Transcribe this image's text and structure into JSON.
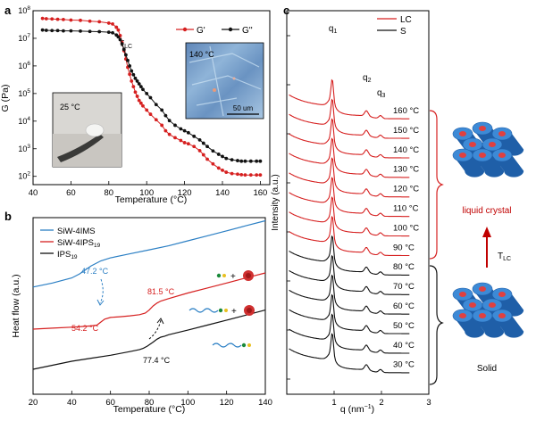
{
  "panels": {
    "a": {
      "letter": "a",
      "chart_data": {
        "type": "line",
        "xlabel": "Temperature (°C)",
        "ylabel": "G (Pa)",
        "xlim": [
          40,
          165
        ],
        "ylim_log10": [
          1.7,
          8
        ],
        "log_y": true,
        "x_ticks": [
          40,
          60,
          80,
          100,
          120,
          140,
          160
        ],
        "y_ticks": [
          {
            "e": "2",
            "v": 2
          },
          {
            "e": "3",
            "v": 3
          },
          {
            "e": "4",
            "v": 4
          },
          {
            "e": "5",
            "v": 5
          },
          {
            "e": "6",
            "v": 6
          },
          {
            "e": "7",
            "v": 7
          },
          {
            "e": "8",
            "v": 8
          }
        ],
        "tick_base": "10",
        "legend": [
          "G'",
          "G''"
        ],
        "legend_position": "top-right",
        "series": [
          {
            "name": "G'",
            "color": "#d62020",
            "x": [
              45,
              47,
              50,
              53,
              56,
              60,
              65,
              70,
              75,
              80,
              82,
              84,
              85,
              86,
              87,
              88,
              89,
              90,
              91,
              92,
              93,
              94,
              95,
              96,
              97,
              98,
              100,
              102,
              105,
              108,
              110,
              112,
              115,
              118,
              120,
              122,
              125,
              128,
              130,
              132,
              135,
              138,
              140,
              142,
              145,
              148,
              150,
              152,
              155,
              158,
              160
            ],
            "log10_y": [
              7.72,
              7.71,
              7.7,
              7.69,
              7.68,
              7.66,
              7.65,
              7.62,
              7.6,
              7.55,
              7.52,
              7.4,
              7.3,
              7.1,
              6.85,
              6.55,
              6.25,
              5.95,
              5.7,
              5.45,
              5.25,
              5.05,
              4.9,
              4.75,
              4.65,
              4.55,
              4.4,
              4.25,
              4.05,
              3.85,
              3.65,
              3.52,
              3.4,
              3.3,
              3.22,
              3.18,
              3.08,
              2.93,
              2.78,
              2.62,
              2.45,
              2.3,
              2.22,
              2.15,
              2.1,
              2.08,
              2.06,
              2.05,
              2.05,
              2.05,
              2.05
            ]
          },
          {
            "name": "G''",
            "color": "#111111",
            "x": [
              45,
              47,
              50,
              53,
              56,
              60,
              65,
              70,
              75,
              80,
              82,
              84,
              85,
              86,
              87,
              88,
              89,
              90,
              91,
              92,
              93,
              94,
              95,
              96,
              97,
              98,
              100,
              102,
              105,
              108,
              110,
              112,
              115,
              118,
              120,
              122,
              125,
              128,
              130,
              132,
              135,
              138,
              140,
              142,
              145,
              148,
              150,
              152,
              155,
              158,
              160
            ],
            "log10_y": [
              7.3,
              7.29,
              7.28,
              7.28,
              7.27,
              7.27,
              7.26,
              7.25,
              7.24,
              7.22,
              7.2,
              7.12,
              7.05,
              6.95,
              6.8,
              6.6,
              6.4,
              6.2,
              6.0,
              5.82,
              5.68,
              5.55,
              5.45,
              5.35,
              5.25,
              5.15,
              5.0,
              4.85,
              4.6,
              4.4,
              4.2,
              4.02,
              3.85,
              3.72,
              3.65,
              3.58,
              3.45,
              3.32,
              3.2,
              3.08,
              2.92,
              2.8,
              2.72,
              2.65,
              2.6,
              2.57,
              2.55,
              2.55,
              2.55,
              2.55,
              2.55
            ]
          }
        ],
        "annotations": {
          "t_lc": "T",
          "t_lc_sub": "LC"
        }
      },
      "inset_photo_label": "25 °C",
      "inset_micro_label": "140 °C",
      "scale_bar_label": "50 um"
    },
    "b": {
      "letter": "b",
      "chart_data": {
        "type": "line",
        "xlabel": "Temperature (°C)",
        "ylabel": "Heat flow (a.u.)",
        "xlim": [
          20,
          140
        ],
        "x_ticks": [
          20,
          40,
          60,
          80,
          100,
          120,
          140
        ],
        "legend": [
          {
            "main": "SiW-4IMS",
            "sub": "",
            "color": "#2b7fc4"
          },
          {
            "main": "SiW-4IPS",
            "sub": "19",
            "color": "#d62020"
          },
          {
            "main": "IPS",
            "sub": "19",
            "color": "#111111"
          }
        ],
        "legend_position": "top-left",
        "series": [
          {
            "name": "SiW-4IMS",
            "color": "#2b7fc4",
            "x": [
              20,
              30,
              40,
              44,
              47,
              50,
              55,
              60,
              70,
              80,
              90,
              100,
              110,
              120,
              130,
              140
            ],
            "y": [
              4.1,
              4.3,
              4.55,
              4.75,
              4.95,
              5.15,
              5.4,
              5.55,
              5.75,
              5.95,
              6.15,
              6.4,
              6.65,
              6.9,
              7.15,
              7.4
            ]
          },
          {
            "name": "SiW-4IPS19",
            "color": "#d62020",
            "x": [
              20,
              30,
              40,
              45,
              50,
              53,
              55,
              57,
              60,
              65,
              70,
              75,
              78,
              80,
              82,
              84,
              86,
              90,
              100,
              110,
              120,
              130,
              140
            ],
            "y": [
              2.0,
              2.05,
              2.1,
              2.13,
              2.16,
              2.2,
              2.35,
              2.5,
              2.58,
              2.62,
              2.66,
              2.72,
              2.8,
              2.95,
              3.15,
              3.3,
              3.4,
              3.52,
              3.8,
              4.05,
              4.3,
              4.55,
              4.8
            ]
          },
          {
            "name": "IPS19",
            "color": "#111111",
            "x": [
              20,
              30,
              40,
              50,
              60,
              70,
              75,
              77,
              79,
              82,
              84,
              86,
              88,
              90,
              100,
              110,
              120,
              130,
              140
            ],
            "y": [
              0.0,
              0.2,
              0.4,
              0.55,
              0.7,
              0.88,
              0.98,
              1.05,
              1.15,
              1.35,
              1.5,
              1.6,
              1.65,
              1.72,
              1.95,
              2.2,
              2.45,
              2.7,
              2.95
            ]
          }
        ],
        "annotations": [
          {
            "main": "47.2 °C",
            "color": "#2b7fc4"
          },
          {
            "main": "54.2 °C",
            "color": "#d62020"
          },
          {
            "main": "81.5 °C",
            "color": "#d62020"
          },
          {
            "main": "77.4 °C",
            "color": "#111111"
          }
        ]
      }
    },
    "c": {
      "letter": "c",
      "chart_data": {
        "type": "line",
        "xlabel_main": "q (nm",
        "xlabel_sup": "−1",
        "xlabel_tail": ")",
        "ylabel": "Intensity (a.u.)",
        "xlim": [
          0,
          3
        ],
        "x_ticks": [
          1,
          2,
          3
        ],
        "legend": [
          {
            "label": "LC",
            "color": "#d62020"
          },
          {
            "label": "S",
            "color": "#111111"
          }
        ],
        "legend_position": "top-right",
        "peak_labels": [
          {
            "main": "q",
            "sub": "1"
          },
          {
            "main": "q",
            "sub": "2"
          },
          {
            "main": "q",
            "sub": "3"
          }
        ],
        "peak_positions_q": [
          0.96,
          1.68,
          1.98
        ],
        "series": [
          {
            "name": "160 °C",
            "temp_label": "160 °C",
            "phase": "LC"
          },
          {
            "name": "150 °C",
            "temp_label": "150 °C",
            "phase": "LC"
          },
          {
            "name": "140 °C",
            "temp_label": "140 °C",
            "phase": "LC"
          },
          {
            "name": "130 °C",
            "temp_label": "130 °C",
            "phase": "LC"
          },
          {
            "name": "120 °C",
            "temp_label": "120 °C",
            "phase": "LC"
          },
          {
            "name": "110 °C",
            "temp_label": "110 °C",
            "phase": "LC"
          },
          {
            "name": "100 °C",
            "temp_label": "100 °C",
            "phase": "LC"
          },
          {
            "name": "90 °C",
            "temp_label": "90 °C",
            "phase": "LC"
          },
          {
            "name": "80 °C",
            "temp_label": "80 °C",
            "phase": "S"
          },
          {
            "name": "70 °C",
            "temp_label": "70 °C",
            "phase": "S"
          },
          {
            "name": "60 °C",
            "temp_label": "60 °C",
            "phase": "S"
          },
          {
            "name": "50 °C",
            "temp_label": "50 °C",
            "phase": "S"
          },
          {
            "name": "40 °C",
            "temp_label": "40 °C",
            "phase": "S"
          },
          {
            "name": "30 °C",
            "temp_label": "30 °C",
            "phase": "S"
          }
        ]
      }
    },
    "schematic": {
      "lc_label": "liquid crystal",
      "solid_label": "Solid",
      "arrow_label": "T",
      "arrow_sub": "LC",
      "colors": {
        "cylinder": "#3d8ad6",
        "cylinder_dark": "#1f5fa8",
        "core": "#e04040",
        "arrow": "#c00000",
        "lc_text": "#c00000"
      }
    }
  }
}
